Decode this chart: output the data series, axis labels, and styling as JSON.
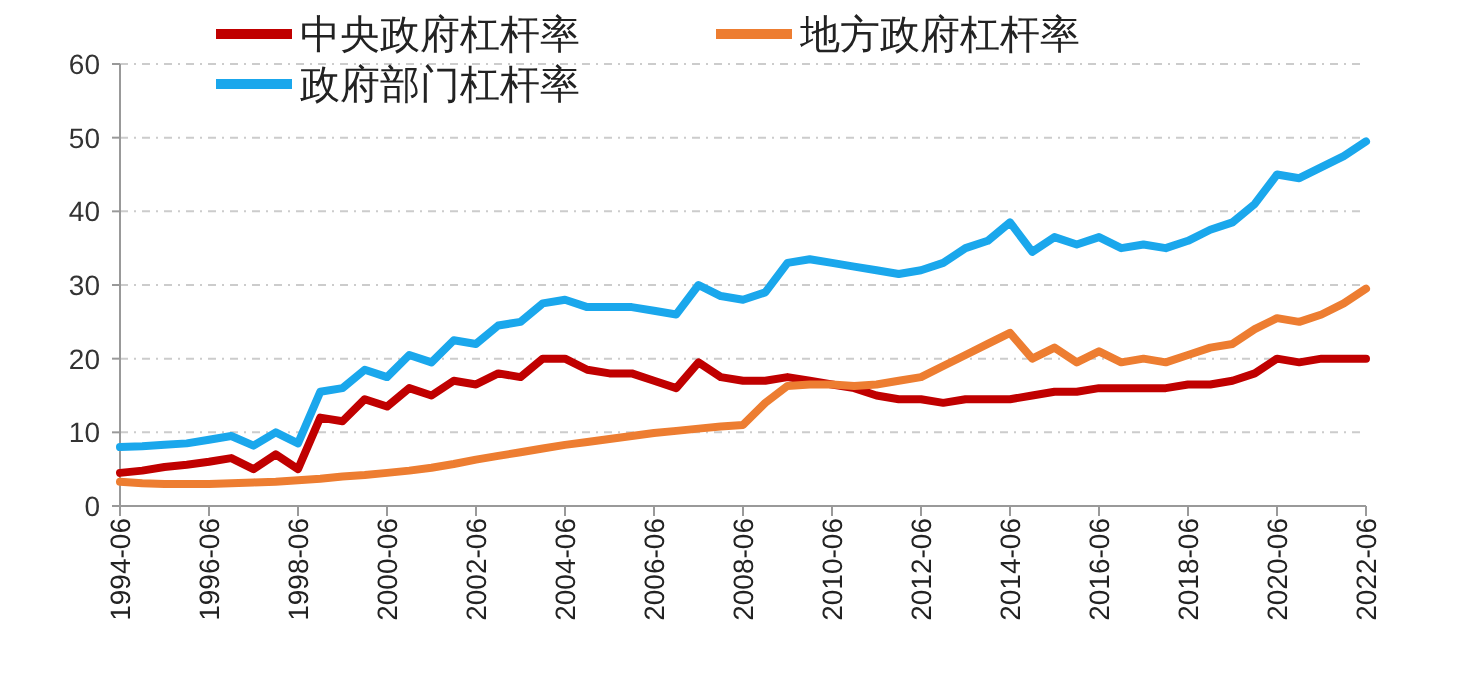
{
  "chart_data": {
    "type": "line",
    "legend": "top",
    "grid": "y",
    "line_style": "solid",
    "marker": "none",
    "x": [
      "1994-06",
      "1994-12",
      "1995-06",
      "1995-12",
      "1996-06",
      "1996-12",
      "1997-06",
      "1997-12",
      "1998-06",
      "1998-12",
      "1999-06",
      "1999-12",
      "2000-06",
      "2000-12",
      "2001-06",
      "2001-12",
      "2002-06",
      "2002-12",
      "2003-06",
      "2003-12",
      "2004-06",
      "2004-12",
      "2005-06",
      "2005-12",
      "2006-06",
      "2006-12",
      "2007-06",
      "2007-12",
      "2008-06",
      "2008-12",
      "2009-06",
      "2009-12",
      "2010-06",
      "2010-12",
      "2011-06",
      "2011-12",
      "2012-06",
      "2012-12",
      "2013-06",
      "2013-12",
      "2014-06",
      "2014-12",
      "2015-06",
      "2015-12",
      "2016-06",
      "2016-12",
      "2017-06",
      "2017-12",
      "2018-06",
      "2018-12",
      "2019-06",
      "2019-12",
      "2020-06",
      "2020-12",
      "2021-06",
      "2021-12",
      "2022-06"
    ],
    "ylim": [
      0,
      60
    ],
    "yticks": [
      0,
      10,
      20,
      30,
      40,
      50,
      60
    ],
    "xlim": [
      "1994-06",
      "2022-06"
    ],
    "xticks": [
      {
        "value": "1994-06",
        "label": "1994-06"
      },
      {
        "value": "1996-06",
        "label": "1996-06"
      },
      {
        "value": "1998-06",
        "label": "1998-06"
      },
      {
        "value": "2000-06",
        "label": "2000-06"
      },
      {
        "value": "2002-06",
        "label": "2002-06"
      },
      {
        "value": "2004-06",
        "label": "2004-06"
      },
      {
        "value": "2006-06",
        "label": "2006-06"
      },
      {
        "value": "2008-06",
        "label": "2008-06"
      },
      {
        "value": "2010-06",
        "label": "2010-06"
      },
      {
        "value": "2012-06",
        "label": "2012-06"
      },
      {
        "value": "2014-06",
        "label": "2014-06"
      },
      {
        "value": "2016-06",
        "label": "2016-06"
      },
      {
        "value": "2018-06",
        "label": "2018-06"
      },
      {
        "value": "2020-06",
        "label": "2020-06"
      },
      {
        "value": "2022-06",
        "label": "2022-06"
      }
    ],
    "series": [
      {
        "name": "中央政府杠杆率",
        "color": "#c00000",
        "values": [
          4.5,
          4.8,
          5.3,
          5.6,
          6,
          6.5,
          5,
          7,
          5,
          12,
          11.5,
          14.5,
          13.5,
          16,
          15,
          17,
          16.5,
          18,
          17.5,
          20,
          20,
          18.5,
          18,
          18,
          17,
          16,
          19.5,
          17.5,
          17,
          17,
          17.5,
          17,
          16.5,
          16,
          15,
          14.5,
          14.5,
          14,
          14.5,
          14.5,
          14.5,
          15,
          15.5,
          15.5,
          16,
          16,
          16,
          16,
          16.5,
          16.5,
          17,
          18,
          20,
          19.5,
          20,
          20,
          20
        ]
      },
      {
        "name": "地方政府杠杆率",
        "color": "#ed7d31",
        "values": [
          3.3,
          3.1,
          3,
          3,
          3,
          3.1,
          3.2,
          3.3,
          3.5,
          3.7,
          4,
          4.2,
          4.5,
          4.8,
          5.2,
          5.7,
          6.3,
          6.8,
          7.3,
          7.8,
          8.3,
          8.7,
          9.1,
          9.5,
          9.9,
          10.2,
          10.5,
          10.8,
          11,
          14,
          16.3,
          16.5,
          16.5,
          16.3,
          16.5,
          17,
          17.5,
          19,
          20.5,
          22,
          23.5,
          20,
          21.5,
          19.5,
          21,
          19.5,
          20,
          19.5,
          20.5,
          21.5,
          22,
          24,
          25.5,
          25,
          26,
          27.5,
          29.5
        ]
      },
      {
        "name": "政府部门杠杆率",
        "color": "#1aa7ec",
        "values": [
          8,
          8.1,
          8.3,
          8.5,
          9,
          9.5,
          8.2,
          10,
          8.5,
          15.5,
          16,
          18.5,
          17.5,
          20.5,
          19.5,
          22.5,
          22,
          24.5,
          25,
          27.5,
          28,
          27,
          27,
          27,
          26.5,
          26,
          30,
          28.5,
          28,
          29,
          33,
          33.5,
          33,
          32.5,
          32,
          31.5,
          32,
          33,
          35,
          36,
          38.5,
          34.5,
          36.5,
          35.5,
          36.5,
          35,
          35.5,
          35,
          36,
          37.5,
          38.5,
          41,
          45,
          44.5,
          46,
          47.5,
          49.5
        ]
      }
    ]
  }
}
